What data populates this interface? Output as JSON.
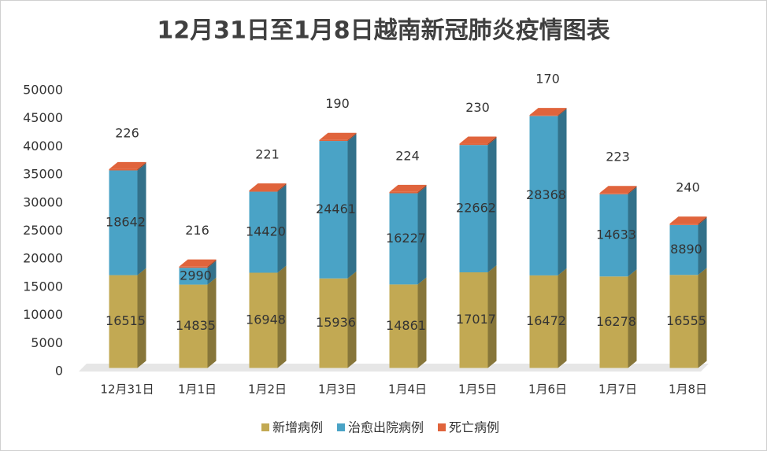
{
  "chart_data": {
    "type": "bar",
    "stacked": true,
    "title": "12月31日至1月8日越南新冠肺炎疫情图表",
    "categories": [
      "12月31日",
      "1月1日",
      "1月2日",
      "1月3日",
      "1月4日",
      "1月5日",
      "1月6日",
      "1月7日",
      "1月8日"
    ],
    "series": [
      {
        "name": "新增病例",
        "color": "#c2a953",
        "values": [
          16515,
          14835,
          16948,
          15936,
          14861,
          17017,
          16472,
          16278,
          16555
        ]
      },
      {
        "name": "治愈出院病例",
        "color": "#4aa3c6",
        "values": [
          18642,
          2990,
          14420,
          24461,
          16227,
          22662,
          28368,
          14633,
          8890
        ]
      },
      {
        "name": "死亡病例",
        "color": "#e0643c",
        "values": [
          226,
          216,
          221,
          190,
          224,
          230,
          170,
          223,
          240
        ]
      }
    ],
    "ylim": [
      0,
      50000
    ],
    "yticks": [
      0,
      5000,
      10000,
      15000,
      20000,
      25000,
      30000,
      35000,
      40000,
      45000,
      50000
    ],
    "legend": "bottom"
  }
}
